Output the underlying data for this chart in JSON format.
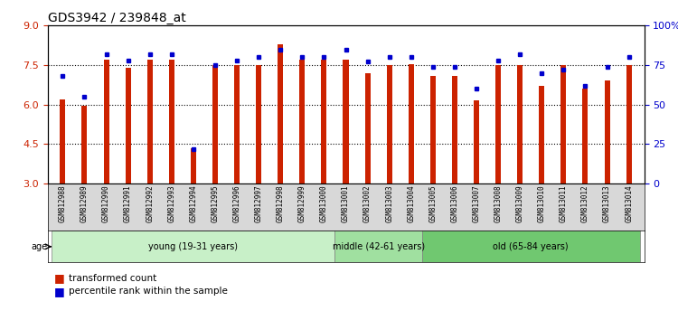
{
  "title": "GDS3942 / 239848_at",
  "samples": [
    "GSM812988",
    "GSM812989",
    "GSM812990",
    "GSM812991",
    "GSM812992",
    "GSM812993",
    "GSM812994",
    "GSM812995",
    "GSM812996",
    "GSM812997",
    "GSM812998",
    "GSM812999",
    "GSM813000",
    "GSM813001",
    "GSM813002",
    "GSM813003",
    "GSM813004",
    "GSM813005",
    "GSM813006",
    "GSM813007",
    "GSM813008",
    "GSM813009",
    "GSM813010",
    "GSM813011",
    "GSM813012",
    "GSM813013",
    "GSM813014"
  ],
  "bar_values": [
    6.2,
    5.95,
    7.7,
    7.4,
    7.7,
    7.7,
    4.35,
    7.5,
    7.5,
    7.5,
    8.3,
    7.7,
    7.7,
    7.7,
    7.2,
    7.5,
    7.55,
    7.1,
    7.1,
    6.15,
    7.5,
    7.5,
    6.7,
    7.5,
    6.6,
    6.9,
    7.5
  ],
  "dot_values": [
    68,
    55,
    82,
    78,
    82,
    82,
    22,
    75,
    78,
    80,
    85,
    80,
    80,
    85,
    77,
    80,
    80,
    74,
    74,
    60,
    78,
    82,
    70,
    72,
    62,
    74,
    80
  ],
  "groups": [
    {
      "label": "young (19-31 years)",
      "start": 0,
      "end": 13,
      "color": "#c8f0c8"
    },
    {
      "label": "middle (42-61 years)",
      "start": 13,
      "end": 17,
      "color": "#a0e0a0"
    },
    {
      "label": "old (65-84 years)",
      "start": 17,
      "end": 27,
      "color": "#70c870"
    }
  ],
  "ylim_left": [
    3,
    9
  ],
  "ylim_right": [
    0,
    100
  ],
  "yticks_left": [
    3,
    4.5,
    6,
    7.5,
    9
  ],
  "yticks_right": [
    0,
    25,
    50,
    75,
    100
  ],
  "bar_color": "#cc2200",
  "dot_color": "#0000cc",
  "bar_width": 0.25,
  "background_color": "#ffffff",
  "plot_bg_color": "#ffffff",
  "tick_label_color_left": "#cc2200",
  "tick_label_color_right": "#0000cc",
  "legend_items": [
    {
      "color": "#cc2200",
      "marker": "s",
      "label": "transformed count"
    },
    {
      "color": "#0000cc",
      "marker": "s",
      "label": "percentile rank within the sample"
    }
  ]
}
